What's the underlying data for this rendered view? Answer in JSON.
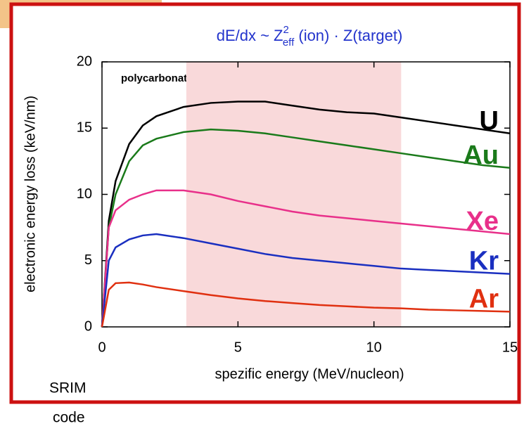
{
  "chart_data": {
    "type": "line",
    "title_parts": {
      "main": "dE/dx  ~  Z",
      "sup": "2",
      "sub": "eff",
      "rest": " (ion) · Z(target)"
    },
    "annotation": "polycarbonate",
    "note": [
      "SRIM",
      "code"
    ],
    "x_label": "spezific energy (MeV/nucleon)",
    "y_label": "electronic energy loss (keV/nm)",
    "highlight_range": [
      3.1,
      11
    ],
    "highlight_color": "#f9d9da",
    "x": [
      0,
      0.25,
      0.5,
      1,
      1.5,
      2,
      3,
      4,
      5,
      6,
      7,
      8,
      9,
      10,
      11,
      12,
      13,
      14,
      15
    ],
    "series": [
      {
        "name": "U",
        "color": "#000000",
        "values": [
          0,
          8,
          11,
          13.8,
          15.2,
          15.9,
          16.6,
          16.9,
          17.0,
          17.0,
          16.7,
          16.4,
          16.2,
          16.1,
          15.8,
          15.5,
          15.2,
          14.9,
          14.6
        ]
      },
      {
        "name": "Au",
        "color": "#1a7a1a",
        "values": [
          0,
          7.5,
          10,
          12.5,
          13.7,
          14.2,
          14.7,
          14.9,
          14.8,
          14.6,
          14.3,
          14.0,
          13.7,
          13.4,
          13.1,
          12.8,
          12.5,
          12.2,
          12.0
        ]
      },
      {
        "name": "Xe",
        "color": "#e8308a",
        "values": [
          0,
          7.5,
          8.8,
          9.6,
          10.0,
          10.3,
          10.3,
          10.0,
          9.5,
          9.1,
          8.7,
          8.4,
          8.2,
          8.0,
          7.8,
          7.6,
          7.4,
          7.2,
          7.0
        ]
      },
      {
        "name": "Kr",
        "color": "#1a2fc0",
        "values": [
          0,
          5,
          6.0,
          6.6,
          6.9,
          7.0,
          6.7,
          6.3,
          5.9,
          5.5,
          5.2,
          5.0,
          4.8,
          4.6,
          4.4,
          4.3,
          4.2,
          4.1,
          4.0
        ]
      },
      {
        "name": "Ar",
        "color": "#e03010",
        "values": [
          0,
          2.8,
          3.3,
          3.35,
          3.2,
          3.0,
          2.7,
          2.4,
          2.15,
          1.95,
          1.8,
          1.65,
          1.55,
          1.45,
          1.4,
          1.3,
          1.25,
          1.2,
          1.15
        ]
      }
    ],
    "xlim": [
      0,
      15
    ],
    "xticks": [
      0,
      5,
      10,
      15
    ],
    "ylim": [
      0,
      20
    ],
    "yticks": [
      0,
      5,
      10,
      15,
      20
    ]
  }
}
